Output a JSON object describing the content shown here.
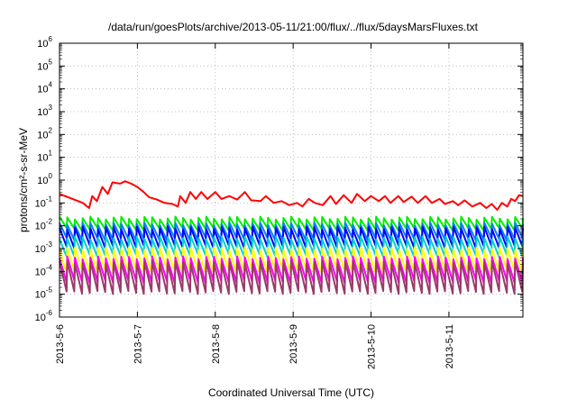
{
  "chart_data": {
    "type": "line",
    "title": "/data/run/goesPlots/archive/2013-05-11/21:00/flux/../flux/5daysMarsFluxes.txt",
    "xlabel": "Coordinated Universal Time (UTC)",
    "ylabel": "protons/cm²-s-sr-MeV",
    "yscale": "log",
    "ylim_exponents": [
      -6,
      6
    ],
    "ytick_exponents": [
      -6,
      -5,
      -4,
      -3,
      -2,
      -1,
      0,
      1,
      2,
      3,
      4,
      5,
      6
    ],
    "x_range_days": [
      0,
      5.95
    ],
    "xtick_labels": [
      "2013-5-6",
      "2013-5-7",
      "2013-5-8",
      "2013-5-9",
      "2013-5-10",
      "2013-5-11"
    ],
    "xtick_days": [
      0,
      1,
      2,
      3,
      4,
      5
    ],
    "grid": true,
    "series": [
      {
        "color": "#ff0000",
        "points": [
          [
            0.0,
            0.25
          ],
          [
            0.3,
            0.1
          ],
          [
            0.38,
            0.06
          ],
          [
            0.42,
            0.2
          ],
          [
            0.48,
            0.12
          ],
          [
            0.55,
            0.5
          ],
          [
            0.62,
            0.25
          ],
          [
            0.68,
            0.8
          ],
          [
            0.78,
            0.7
          ],
          [
            0.84,
            0.9
          ],
          [
            0.92,
            0.7
          ],
          [
            1.0,
            0.5
          ],
          [
            1.08,
            0.3
          ],
          [
            1.15,
            0.18
          ],
          [
            1.25,
            0.14
          ],
          [
            1.35,
            0.1
          ],
          [
            1.45,
            0.09
          ],
          [
            1.52,
            0.07
          ],
          [
            1.55,
            0.2
          ],
          [
            1.62,
            0.1
          ],
          [
            1.68,
            0.3
          ],
          [
            1.75,
            0.15
          ],
          [
            1.82,
            0.3
          ],
          [
            1.9,
            0.15
          ],
          [
            2.0,
            0.3
          ],
          [
            2.08,
            0.15
          ],
          [
            2.18,
            0.2
          ],
          [
            2.28,
            0.14
          ],
          [
            2.38,
            0.3
          ],
          [
            2.46,
            0.13
          ],
          [
            2.58,
            0.12
          ],
          [
            2.65,
            0.2
          ],
          [
            2.75,
            0.1
          ],
          [
            2.85,
            0.12
          ],
          [
            2.95,
            0.08
          ],
          [
            3.05,
            0.1
          ],
          [
            3.12,
            0.07
          ],
          [
            3.2,
            0.15
          ],
          [
            3.28,
            0.1
          ],
          [
            3.38,
            0.08
          ],
          [
            3.48,
            0.2
          ],
          [
            3.55,
            0.09
          ],
          [
            3.65,
            0.22
          ],
          [
            3.75,
            0.1
          ],
          [
            3.82,
            0.25
          ],
          [
            3.92,
            0.12
          ],
          [
            4.0,
            0.2
          ],
          [
            4.1,
            0.12
          ],
          [
            4.18,
            0.2
          ],
          [
            4.25,
            0.1
          ],
          [
            4.35,
            0.2
          ],
          [
            4.42,
            0.11
          ],
          [
            4.52,
            0.19
          ],
          [
            4.6,
            0.1
          ],
          [
            4.7,
            0.2
          ],
          [
            4.78,
            0.1
          ],
          [
            4.88,
            0.15
          ],
          [
            4.95,
            0.09
          ],
          [
            5.05,
            0.12
          ],
          [
            5.12,
            0.08
          ],
          [
            5.2,
            0.13
          ],
          [
            5.3,
            0.07
          ],
          [
            5.4,
            0.1
          ],
          [
            5.48,
            0.06
          ],
          [
            5.55,
            0.09
          ],
          [
            5.62,
            0.05
          ],
          [
            5.68,
            0.1
          ],
          [
            5.75,
            0.07
          ],
          [
            5.8,
            0.15
          ],
          [
            5.85,
            0.12
          ],
          [
            5.9,
            0.22
          ],
          [
            5.95,
            0.2
          ]
        ]
      },
      {
        "color": "#00ee00",
        "base": 0.007,
        "peak": 0.022
      },
      {
        "color": "#0080ff",
        "base": 0.0026,
        "peak": 0.012
      },
      {
        "color": "#0000ff",
        "base": 0.0012,
        "peak": 0.008
      },
      {
        "color": "#00d0d0",
        "base": 0.0005,
        "peak": 0.003
      },
      {
        "color": "#ffff00",
        "base": 0.0001,
        "peak": 0.001
      },
      {
        "color": "#ff00ff",
        "base": 3.5e-05,
        "peak": 0.0004
      },
      {
        "color": "#9a3a6a",
        "base": 1.2e-05,
        "peak": 0.00025
      }
    ],
    "sawtooth_teeth": 60
  }
}
